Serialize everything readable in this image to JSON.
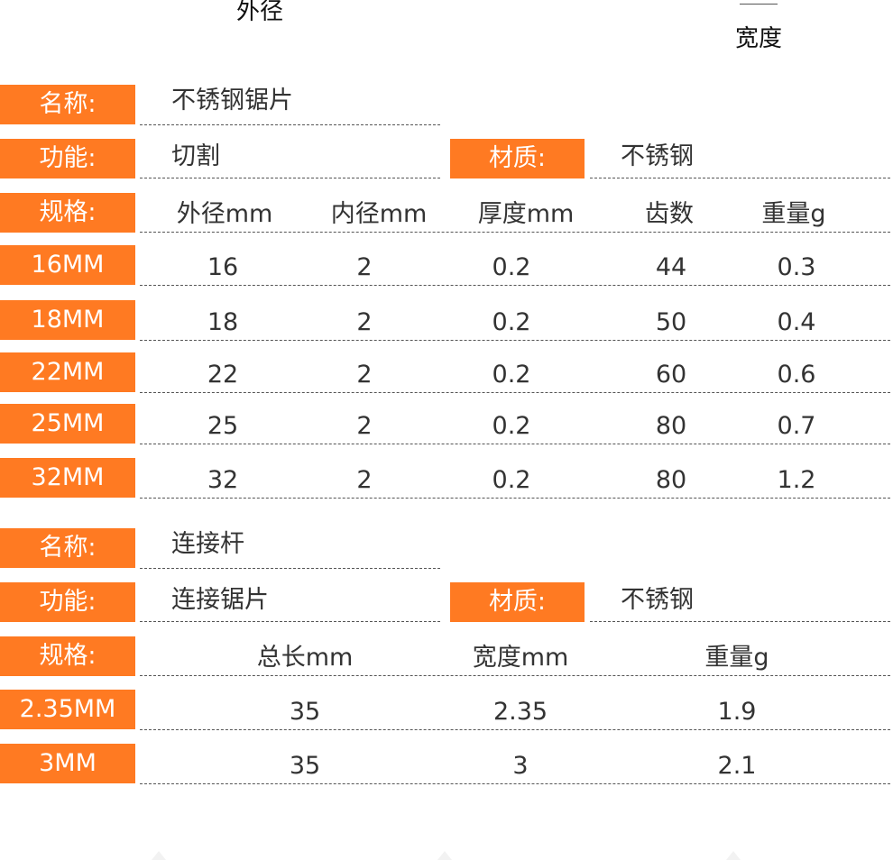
{
  "diagram": {
    "outer_label": "外径",
    "width_label": "宽度"
  },
  "blade": {
    "name_label": "名称:",
    "name": "不锈钢锯片",
    "function_label": "功能:",
    "function": "切割",
    "material_label": "材质:",
    "material": "不锈钢",
    "spec_label": "规格:",
    "headers": [
      "外径mm",
      "内径mm",
      "厚度mm",
      "齿数",
      "重量g"
    ],
    "rows": [
      {
        "size": "16MM",
        "values": [
          "16",
          "2",
          "0.2",
          "44",
          "0.3"
        ]
      },
      {
        "size": "18MM",
        "values": [
          "18",
          "2",
          "0.2",
          "50",
          "0.4"
        ]
      },
      {
        "size": "22MM",
        "values": [
          "22",
          "2",
          "0.2",
          "60",
          "0.6"
        ]
      },
      {
        "size": "25MM",
        "values": [
          "25",
          "2",
          "0.2",
          "80",
          "0.7"
        ]
      },
      {
        "size": "32MM",
        "values": [
          "32",
          "2",
          "0.2",
          "80",
          "1.2"
        ]
      }
    ]
  },
  "rod": {
    "name_label": "名称:",
    "name": "连接杆",
    "function_label": "功能:",
    "function": "连接锯片",
    "material_label": "材质:",
    "material": "不锈钢",
    "spec_label": "规格:",
    "headers": [
      "总长mm",
      "宽度mm",
      "重量g"
    ],
    "rows": [
      {
        "size": "2.35MM",
        "values": [
          "35",
          "2.35",
          "1.9"
        ]
      },
      {
        "size": "3MM",
        "values": [
          "35",
          "3",
          "2.1"
        ]
      }
    ]
  },
  "colors": {
    "accent": "#ff7a22",
    "text": "#333333"
  }
}
